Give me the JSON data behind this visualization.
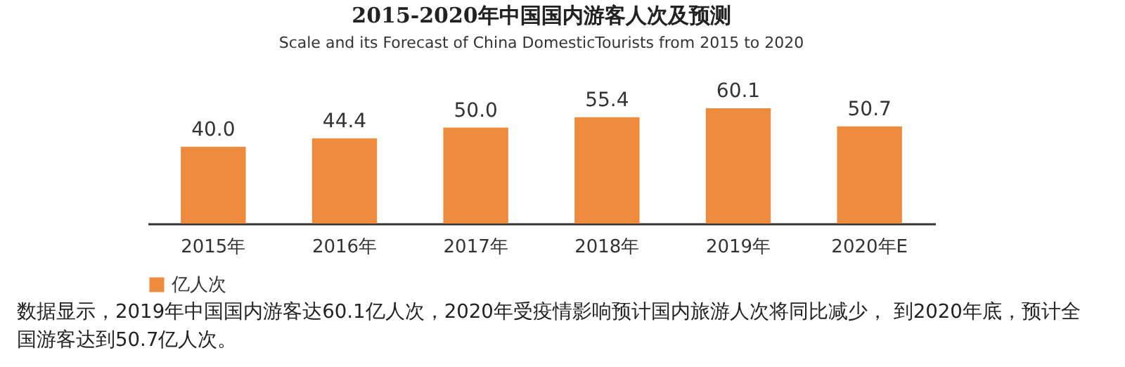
{
  "chart_data": {
    "type": "bar",
    "title": "2015-2020年中国国内游客人次及预测",
    "subtitle": "Scale and its Forecast of China DomesticTourists from 2015 to 2020",
    "categories": [
      "2015年",
      "2016年",
      "2017年",
      "2018年",
      "2019年",
      "2020年E"
    ],
    "series": [
      {
        "name": "亿人次",
        "color": "#ed8a3c",
        "values": [
          40.0,
          44.4,
          50.0,
          55.4,
          60.1,
          50.7
        ],
        "value_labels": [
          "40.0",
          "44.4",
          "50.0",
          "55.4",
          "60.1",
          "50.7"
        ]
      }
    ],
    "legend": "bottom",
    "grid": false,
    "tick_labels": "x",
    "annotations": [
      "数据显示，2019年中国国内游客达60.1亿人次，2020年受疫情影响预计国内旅游人次将同比减少， 到2020年底，预计全国游客达到50.7亿人次。"
    ]
  }
}
